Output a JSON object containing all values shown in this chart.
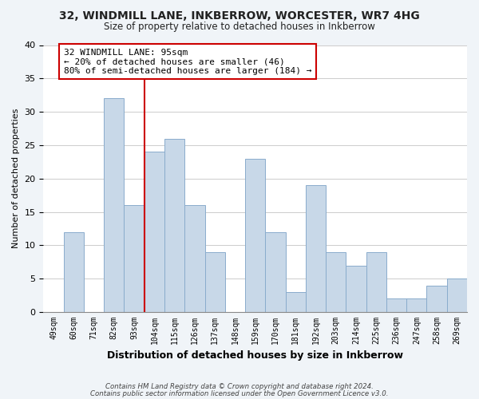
{
  "title": "32, WINDMILL LANE, INKBERROW, WORCESTER, WR7 4HG",
  "subtitle": "Size of property relative to detached houses in Inkberrow",
  "xlabel": "Distribution of detached houses by size in Inkberrow",
  "ylabel": "Number of detached properties",
  "bar_labels": [
    "49sqm",
    "60sqm",
    "71sqm",
    "82sqm",
    "93sqm",
    "104sqm",
    "115sqm",
    "126sqm",
    "137sqm",
    "148sqm",
    "159sqm",
    "170sqm",
    "181sqm",
    "192sqm",
    "203sqm",
    "214sqm",
    "225sqm",
    "236sqm",
    "247sqm",
    "258sqm",
    "269sqm"
  ],
  "bar_values": [
    0,
    12,
    0,
    32,
    16,
    24,
    26,
    16,
    9,
    0,
    23,
    12,
    3,
    19,
    9,
    7,
    9,
    2,
    2,
    4,
    5
  ],
  "bar_color": "#c8d8e8",
  "bar_edge_color": "#8aaccc",
  "vline_x_index": 4,
  "vline_color": "#cc0000",
  "annotation_title": "32 WINDMILL LANE: 95sqm",
  "annotation_line1": "← 20% of detached houses are smaller (46)",
  "annotation_line2": "80% of semi-detached houses are larger (184) →",
  "annotation_box_color": "#ffffff",
  "annotation_box_edge": "#cc0000",
  "ylim": [
    0,
    40
  ],
  "yticks": [
    0,
    5,
    10,
    15,
    20,
    25,
    30,
    35,
    40
  ],
  "grid_color": "#cccccc",
  "plot_bg_color": "#ffffff",
  "fig_bg_color": "#f0f4f8",
  "footer_line1": "Contains HM Land Registry data © Crown copyright and database right 2024.",
  "footer_line2": "Contains public sector information licensed under the Open Government Licence v3.0."
}
